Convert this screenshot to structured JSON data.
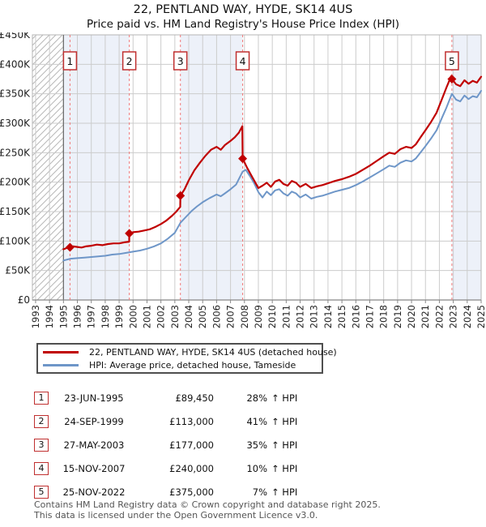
{
  "title": {
    "line1": "22, PENTLAND WAY, HYDE, SK14 4US",
    "line2": "Price paid vs. HM Land Registry's House Price Index (HPI)"
  },
  "legend": {
    "items": [
      {
        "label": "22, PENTLAND WAY, HYDE, SK14 4US (detached house)",
        "color": "#c00000"
      },
      {
        "label": "HPI: Average price, detached house, Tameside",
        "color": "#6e96c8"
      }
    ]
  },
  "transactions": [
    {
      "num": "1",
      "date": "23-JUN-1995",
      "price": "£89,450",
      "pct": "28%",
      "suffix": "↑ HPI"
    },
    {
      "num": "2",
      "date": "24-SEP-1999",
      "price": "£113,000",
      "pct": "41%",
      "suffix": "↑ HPI"
    },
    {
      "num": "3",
      "date": "27-MAY-2003",
      "price": "£177,000",
      "pct": "35%",
      "suffix": "↑ HPI"
    },
    {
      "num": "4",
      "date": "15-NOV-2007",
      "price": "£240,000",
      "pct": "10%",
      "suffix": "↑ HPI"
    },
    {
      "num": "5",
      "date": "25-NOV-2022",
      "price": "£375,000",
      "pct": "7%",
      "suffix": "↑ HPI"
    }
  ],
  "footer": {
    "line1": "Contains HM Land Registry data © Crown copyright and database right 2025.",
    "line2": "This data is licensed under the Open Government Licence v3.0."
  },
  "chart_data": {
    "type": "line",
    "title": "Price paid vs. HM Land Registry's House Price Index (HPI)",
    "xlabel": "Year",
    "ylabel": "Price (GBP)",
    "xlim": [
      1992.77,
      2025.0
    ],
    "ylim": [
      0,
      450000
    ],
    "grid": true,
    "legend_position": "below",
    "colors": {
      "property": "#c00000",
      "hpi": "#6e96c8",
      "sale_marker": "#c03030",
      "sale_dash": "#f07878",
      "band": "#edf1f9",
      "grid": "#cccccc",
      "axis": "#888888",
      "hatch": "#b8b8b8",
      "border": "#b5b5b5",
      "text": "#222222"
    },
    "x_ticks": [
      1993,
      1994,
      1995,
      1996,
      1997,
      1998,
      1999,
      2000,
      2001,
      2002,
      2003,
      2004,
      2005,
      2006,
      2007,
      2008,
      2009,
      2010,
      2011,
      2012,
      2013,
      2014,
      2015,
      2016,
      2017,
      2018,
      2019,
      2020,
      2021,
      2022,
      2023,
      2024,
      2025
    ],
    "y_ticks": [
      {
        "value": 0,
        "label": "£0"
      },
      {
        "value": 50000,
        "label": "£50K"
      },
      {
        "value": 100000,
        "label": "£100K"
      },
      {
        "value": 150000,
        "label": "£150K"
      },
      {
        "value": 200000,
        "label": "£200K"
      },
      {
        "value": 250000,
        "label": "£250K"
      },
      {
        "value": 300000,
        "label": "£300K"
      },
      {
        "value": 350000,
        "label": "£350K"
      },
      {
        "value": 400000,
        "label": "£400K"
      },
      {
        "value": 450000,
        "label": "£450K"
      }
    ],
    "hatched_period": [
      1992.77,
      1995.0
    ],
    "shaded_periods": [
      [
        1995.0,
        1999.73
      ],
      [
        2003.4,
        2007.87
      ],
      [
        2022.9,
        2025.0
      ]
    ],
    "sales": [
      {
        "num": "1",
        "year": 1995.47,
        "price": 89450,
        "date": "23-JUN-1995"
      },
      {
        "num": "2",
        "year": 1999.73,
        "price": 113000,
        "date": "24-SEP-1999"
      },
      {
        "num": "3",
        "year": 2003.4,
        "price": 177000,
        "date": "27-MAY-2003"
      },
      {
        "num": "4",
        "year": 2007.87,
        "price": 240000,
        "date": "15-NOV-2007"
      },
      {
        "num": "5",
        "year": 2022.9,
        "price": 375000,
        "date": "25-NOV-2022"
      }
    ],
    "series": [
      {
        "name": "22, PENTLAND WAY, HYDE, SK14 4US (detached house)",
        "color_key": "property",
        "points": [
          [
            1995.0,
            86000
          ],
          [
            1995.2,
            88000
          ],
          [
            1995.47,
            89450
          ],
          [
            1995.7,
            91000
          ],
          [
            1996.0,
            90000
          ],
          [
            1996.3,
            89000
          ],
          [
            1996.6,
            91000
          ],
          [
            1997.0,
            92000
          ],
          [
            1997.4,
            94000
          ],
          [
            1997.8,
            93000
          ],
          [
            1998.2,
            95000
          ],
          [
            1998.6,
            96000
          ],
          [
            1999.0,
            96000
          ],
          [
            1999.4,
            98000
          ],
          [
            1999.72,
            99000
          ],
          [
            1999.73,
            113000
          ],
          [
            2000.0,
            115000
          ],
          [
            2000.4,
            116000
          ],
          [
            2000.8,
            118000
          ],
          [
            2001.2,
            120000
          ],
          [
            2001.6,
            124000
          ],
          [
            2002.0,
            129000
          ],
          [
            2002.4,
            135000
          ],
          [
            2002.8,
            143000
          ],
          [
            2003.1,
            150000
          ],
          [
            2003.39,
            158000
          ],
          [
            2003.4,
            177000
          ],
          [
            2003.7,
            188000
          ],
          [
            2004.0,
            203000
          ],
          [
            2004.4,
            220000
          ],
          [
            2004.8,
            233000
          ],
          [
            2005.2,
            245000
          ],
          [
            2005.6,
            255000
          ],
          [
            2006.0,
            260000
          ],
          [
            2006.3,
            255000
          ],
          [
            2006.6,
            263000
          ],
          [
            2007.0,
            270000
          ],
          [
            2007.3,
            276000
          ],
          [
            2007.6,
            284000
          ],
          [
            2007.85,
            295000
          ],
          [
            2007.87,
            240000
          ],
          [
            2008.2,
            224000
          ],
          [
            2008.6,
            207000
          ],
          [
            2009.0,
            190000
          ],
          [
            2009.3,
            194000
          ],
          [
            2009.6,
            199000
          ],
          [
            2009.9,
            192000
          ],
          [
            2010.2,
            201000
          ],
          [
            2010.5,
            204000
          ],
          [
            2010.8,
            197000
          ],
          [
            2011.1,
            194000
          ],
          [
            2011.4,
            202000
          ],
          [
            2011.7,
            199000
          ],
          [
            2012.0,
            192000
          ],
          [
            2012.4,
            197000
          ],
          [
            2012.8,
            190000
          ],
          [
            2013.2,
            193000
          ],
          [
            2013.6,
            195000
          ],
          [
            2014.0,
            198000
          ],
          [
            2014.5,
            202000
          ],
          [
            2015.0,
            205000
          ],
          [
            2015.5,
            209000
          ],
          [
            2016.0,
            214000
          ],
          [
            2016.5,
            221000
          ],
          [
            2017.0,
            228000
          ],
          [
            2017.5,
            236000
          ],
          [
            2018.0,
            244000
          ],
          [
            2018.4,
            250000
          ],
          [
            2018.8,
            248000
          ],
          [
            2019.2,
            256000
          ],
          [
            2019.6,
            260000
          ],
          [
            2020.0,
            258000
          ],
          [
            2020.3,
            264000
          ],
          [
            2020.7,
            278000
          ],
          [
            2021.0,
            288000
          ],
          [
            2021.4,
            302000
          ],
          [
            2021.8,
            318000
          ],
          [
            2022.2,
            342000
          ],
          [
            2022.5,
            360000
          ],
          [
            2022.85,
            380000
          ],
          [
            2022.9,
            375000
          ],
          [
            2023.2,
            366000
          ],
          [
            2023.5,
            363000
          ],
          [
            2023.8,
            373000
          ],
          [
            2024.1,
            367000
          ],
          [
            2024.4,
            372000
          ],
          [
            2024.7,
            369000
          ],
          [
            2025.0,
            379000
          ]
        ]
      },
      {
        "name": "HPI: Average price, detached house, Tameside",
        "color_key": "hpi",
        "points": [
          [
            1995.0,
            67000
          ],
          [
            1995.5,
            70000
          ],
          [
            1996.0,
            71000
          ],
          [
            1996.5,
            72000
          ],
          [
            1997.0,
            73000
          ],
          [
            1997.5,
            74000
          ],
          [
            1998.0,
            75000
          ],
          [
            1998.5,
            77000
          ],
          [
            1999.0,
            78000
          ],
          [
            1999.5,
            80000
          ],
          [
            2000.0,
            82000
          ],
          [
            2000.5,
            84000
          ],
          [
            2001.0,
            87000
          ],
          [
            2001.5,
            91000
          ],
          [
            2002.0,
            96000
          ],
          [
            2002.5,
            104000
          ],
          [
            2003.0,
            114000
          ],
          [
            2003.4,
            131000
          ],
          [
            2003.8,
            141000
          ],
          [
            2004.2,
            151000
          ],
          [
            2004.6,
            159000
          ],
          [
            2005.0,
            166000
          ],
          [
            2005.5,
            173000
          ],
          [
            2006.0,
            179000
          ],
          [
            2006.3,
            176000
          ],
          [
            2006.6,
            181000
          ],
          [
            2007.0,
            188000
          ],
          [
            2007.4,
            196000
          ],
          [
            2007.87,
            218000
          ],
          [
            2008.1,
            221000
          ],
          [
            2008.4,
            210000
          ],
          [
            2008.7,
            198000
          ],
          [
            2009.0,
            183000
          ],
          [
            2009.3,
            174000
          ],
          [
            2009.6,
            184000
          ],
          [
            2009.9,
            178000
          ],
          [
            2010.2,
            186000
          ],
          [
            2010.5,
            188000
          ],
          [
            2010.8,
            181000
          ],
          [
            2011.1,
            177000
          ],
          [
            2011.4,
            184000
          ],
          [
            2011.7,
            181000
          ],
          [
            2012.0,
            174000
          ],
          [
            2012.4,
            179000
          ],
          [
            2012.8,
            172000
          ],
          [
            2013.2,
            175000
          ],
          [
            2013.6,
            177000
          ],
          [
            2014.0,
            180000
          ],
          [
            2014.5,
            184000
          ],
          [
            2015.0,
            187000
          ],
          [
            2015.5,
            190000
          ],
          [
            2016.0,
            195000
          ],
          [
            2016.5,
            201000
          ],
          [
            2017.0,
            208000
          ],
          [
            2017.5,
            215000
          ],
          [
            2018.0,
            222000
          ],
          [
            2018.4,
            228000
          ],
          [
            2018.8,
            226000
          ],
          [
            2019.2,
            233000
          ],
          [
            2019.6,
            237000
          ],
          [
            2020.0,
            235000
          ],
          [
            2020.3,
            240000
          ],
          [
            2020.7,
            252000
          ],
          [
            2021.0,
            261000
          ],
          [
            2021.4,
            274000
          ],
          [
            2021.8,
            288000
          ],
          [
            2022.2,
            310000
          ],
          [
            2022.5,
            326000
          ],
          [
            2022.9,
            350000
          ],
          [
            2023.2,
            340000
          ],
          [
            2023.5,
            337000
          ],
          [
            2023.8,
            347000
          ],
          [
            2024.1,
            341000
          ],
          [
            2024.4,
            346000
          ],
          [
            2024.7,
            344000
          ],
          [
            2025.0,
            355000
          ]
        ]
      }
    ]
  }
}
